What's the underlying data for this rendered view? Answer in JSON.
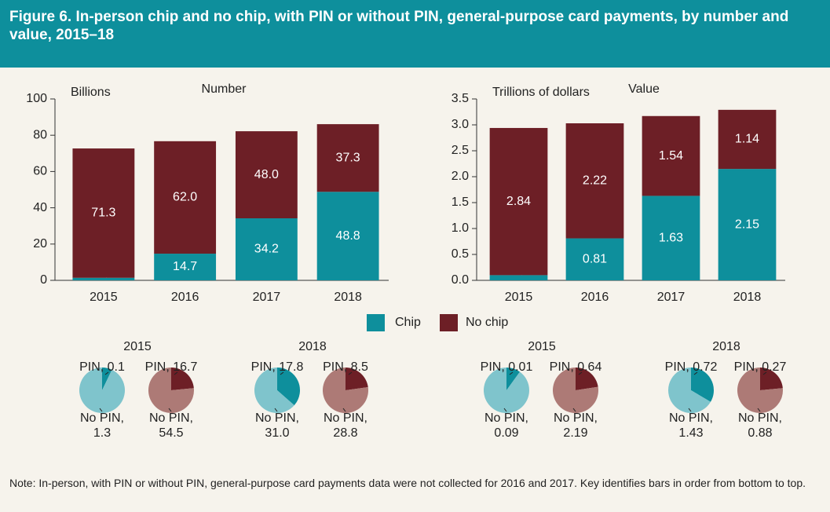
{
  "title": "Figure 6. In-person chip and no chip, with PIN or without PIN, general-purpose card payments, by number and value, 2015–18",
  "note": "Note: In-person, with PIN or without PIN, general-purpose card payments data were not collected for 2016 and 2017. Key identifies bars in order from bottom to top.",
  "chart_data": [
    {
      "type": "bar",
      "stacked": true,
      "title": "Number",
      "y_label": "Billions",
      "categories": [
        "2015",
        "2016",
        "2017",
        "2018"
      ],
      "series": [
        {
          "name": "Chip",
          "color": "#0e8f9c",
          "values": [
            1.4,
            14.7,
            34.2,
            48.8
          ]
        },
        {
          "name": "No chip",
          "color": "#6d1f26",
          "values": [
            71.3,
            62.0,
            48.0,
            37.3
          ],
          "value_labels": [
            "71.3",
            "62.0",
            "48.0",
            "37.3"
          ]
        }
      ],
      "ylim": [
        0,
        100
      ],
      "yticks": [
        0,
        20,
        40,
        60,
        80,
        100
      ],
      "grid": false,
      "legend": "bottom"
    },
    {
      "type": "bar",
      "stacked": true,
      "title": "Value",
      "y_label": "Trillions of dollars",
      "categories": [
        "2015",
        "2016",
        "2017",
        "2018"
      ],
      "series": [
        {
          "name": "Chip",
          "color": "#0e8f9c",
          "values": [
            0.1,
            0.81,
            1.63,
            2.15
          ],
          "value_labels": [
            "0.10",
            "0.81",
            "1.63",
            "2.15"
          ]
        },
        {
          "name": "No chip",
          "color": "#6d1f26",
          "values": [
            2.84,
            2.22,
            1.54,
            1.14
          ]
        }
      ],
      "ylim": [
        0,
        3.5
      ],
      "yticks": [
        {
          "value": 0,
          "label": "0.0"
        },
        0.5,
        {
          "value": 1,
          "label": "1.0"
        },
        1.5,
        {
          "value": 2,
          "label": "2.0"
        },
        2.5,
        {
          "value": 3,
          "label": "3.0"
        },
        3.5
      ],
      "grid": false
    },
    {
      "type": "pie",
      "title": "2015",
      "values": [
        0.1,
        1.3
      ],
      "value_labels": [
        "PIN, 0.1",
        "No PIN, 1.3"
      ],
      "colors": [
        "#0e8f9c",
        "#7fc4cc"
      ]
    },
    {
      "type": "pie",
      "values": [
        16.7,
        54.5
      ],
      "value_labels": [
        "PIN, 16.7",
        "No PIN, 54.5"
      ],
      "colors": [
        "#6d1f26",
        "#ad7a76"
      ]
    },
    {
      "type": "pie",
      "title": "2018",
      "values": [
        17.8,
        31.0
      ],
      "value_labels": [
        "PIN, 17.8",
        "No PIN, 31.0"
      ],
      "colors": [
        "#0e8f9c",
        "#7fc4cc"
      ]
    },
    {
      "type": "pie",
      "values": [
        8.5,
        28.8
      ],
      "value_labels": [
        "PIN, 8.5",
        "No PIN, 28.8"
      ],
      "colors": [
        "#6d1f26",
        "#ad7a76"
      ]
    },
    {
      "type": "pie",
      "title": "2015",
      "values": [
        0.01,
        0.09
      ],
      "value_labels": [
        "PIN, 0.01",
        "No PIN, 0.09"
      ],
      "colors": [
        "#0e8f9c",
        "#7fc4cc"
      ]
    },
    {
      "type": "pie",
      "values": [
        0.64,
        2.19
      ],
      "value_labels": [
        "PIN, 0.64",
        "No PIN, 2.19"
      ],
      "colors": [
        "#6d1f26",
        "#ad7a76"
      ]
    },
    {
      "type": "pie",
      "title": "2018",
      "values": [
        0.72,
        1.43
      ],
      "value_labels": [
        "PIN, 0.72",
        "No PIN, 1.43"
      ],
      "colors": [
        "#0e8f9c",
        "#7fc4cc"
      ]
    },
    {
      "type": "pie",
      "values": [
        0.27,
        0.88
      ],
      "value_labels": [
        "PIN, 0.27",
        "No PIN, 0.88"
      ],
      "colors": [
        "#6d1f26",
        "#ad7a76"
      ]
    }
  ]
}
